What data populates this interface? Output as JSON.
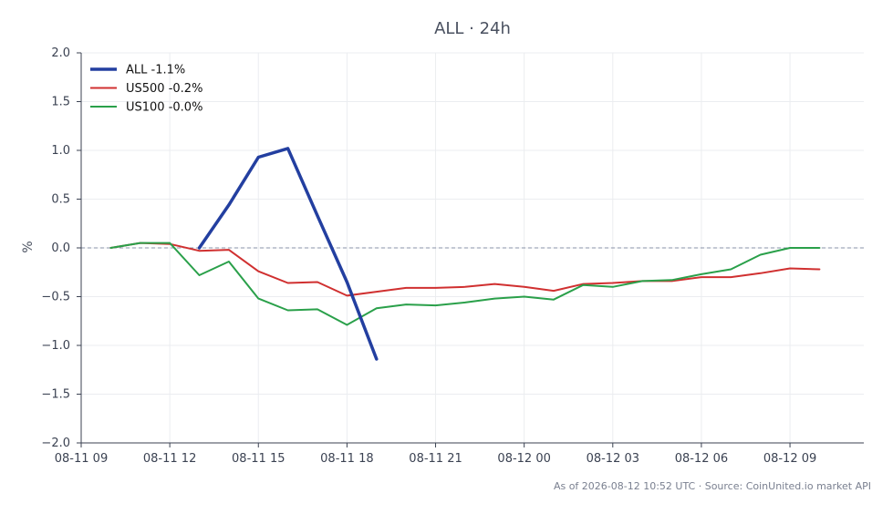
{
  "chart_data": {
    "type": "line",
    "title": "ALL · 24h",
    "xlabel": "",
    "ylabel": "%",
    "ylim": [
      -2.0,
      2.0
    ],
    "yticks": [
      2.0,
      1.5,
      1.0,
      0.5,
      0.0,
      -0.5,
      -1.0,
      -1.5,
      -2.0
    ],
    "ytick_labels": [
      "2.0",
      "1.5",
      "1.0",
      "0.5",
      "0.0",
      "−0.5",
      "−1.0",
      "−1.5",
      "−2.0"
    ],
    "xlim": [
      "2026-08-11 09:00",
      "2026-08-12 11:30"
    ],
    "xticks": [
      "2026-08-11 09:00",
      "2026-08-11 12:00",
      "2026-08-11 15:00",
      "2026-08-11 18:00",
      "2026-08-11 21:00",
      "2026-08-12 00:00",
      "2026-08-12 03:00",
      "2026-08-12 06:00",
      "2026-08-12 09:00"
    ],
    "xtick_labels": [
      "08-11 09",
      "08-11 12",
      "08-11 15",
      "08-11 18",
      "08-11 21",
      "08-12 00",
      "08-12 03",
      "08-12 06",
      "08-12 09"
    ],
    "grid": true,
    "zero_line": true,
    "legend_position": "top-left",
    "series": [
      {
        "name": "ALL -1.1%",
        "color": "#233fa0",
        "x": [
          "2026-08-11 13:00",
          "2026-08-11 14:00",
          "2026-08-11 15:00",
          "2026-08-11 16:00",
          "2026-08-11 17:00",
          "2026-08-11 18:00",
          "2026-08-11 19:00"
        ],
        "values": [
          0.0,
          0.44,
          0.93,
          1.02,
          0.33,
          -0.35,
          -1.14
        ]
      },
      {
        "name": "US500 -0.2%",
        "color": "#d03030",
        "x": [
          "2026-08-11 10:00",
          "2026-08-11 11:00",
          "2026-08-11 12:00",
          "2026-08-11 13:00",
          "2026-08-11 14:00",
          "2026-08-11 15:00",
          "2026-08-11 16:00",
          "2026-08-11 17:00",
          "2026-08-11 18:00",
          "2026-08-11 19:00",
          "2026-08-11 20:00",
          "2026-08-11 21:00",
          "2026-08-11 22:00",
          "2026-08-11 23:00",
          "2026-08-12 00:00",
          "2026-08-12 01:00",
          "2026-08-12 02:00",
          "2026-08-12 03:00",
          "2026-08-12 04:00",
          "2026-08-12 05:00",
          "2026-08-12 06:00",
          "2026-08-12 07:00",
          "2026-08-12 08:00",
          "2026-08-12 09:00",
          "2026-08-12 10:00"
        ],
        "values": [
          0.0,
          0.05,
          0.04,
          -0.03,
          -0.02,
          -0.24,
          -0.36,
          -0.35,
          -0.49,
          -0.45,
          -0.41,
          -0.41,
          -0.4,
          -0.37,
          -0.4,
          -0.44,
          -0.37,
          -0.36,
          -0.34,
          -0.34,
          -0.3,
          -0.3,
          -0.26,
          -0.21,
          -0.22
        ]
      },
      {
        "name": "US100 -0.0%",
        "color": "#2aa04a",
        "x": [
          "2026-08-11 10:00",
          "2026-08-11 11:00",
          "2026-08-11 12:00",
          "2026-08-11 13:00",
          "2026-08-11 14:00",
          "2026-08-11 15:00",
          "2026-08-11 16:00",
          "2026-08-11 17:00",
          "2026-08-11 18:00",
          "2026-08-11 19:00",
          "2026-08-11 20:00",
          "2026-08-11 21:00",
          "2026-08-11 22:00",
          "2026-08-11 23:00",
          "2026-08-12 00:00",
          "2026-08-12 01:00",
          "2026-08-12 02:00",
          "2026-08-12 03:00",
          "2026-08-12 04:00",
          "2026-08-12 05:00",
          "2026-08-12 06:00",
          "2026-08-12 07:00",
          "2026-08-12 08:00",
          "2026-08-12 09:00",
          "2026-08-12 10:00"
        ],
        "values": [
          0.0,
          0.05,
          0.05,
          -0.28,
          -0.14,
          -0.52,
          -0.64,
          -0.63,
          -0.79,
          -0.62,
          -0.58,
          -0.59,
          -0.56,
          -0.52,
          -0.5,
          -0.53,
          -0.38,
          -0.4,
          -0.34,
          -0.33,
          -0.27,
          -0.22,
          -0.07,
          0.0,
          0.0
        ]
      }
    ]
  },
  "footer": "As of 2026-08-12 10:52 UTC · Source: CoinUnited.io market API"
}
